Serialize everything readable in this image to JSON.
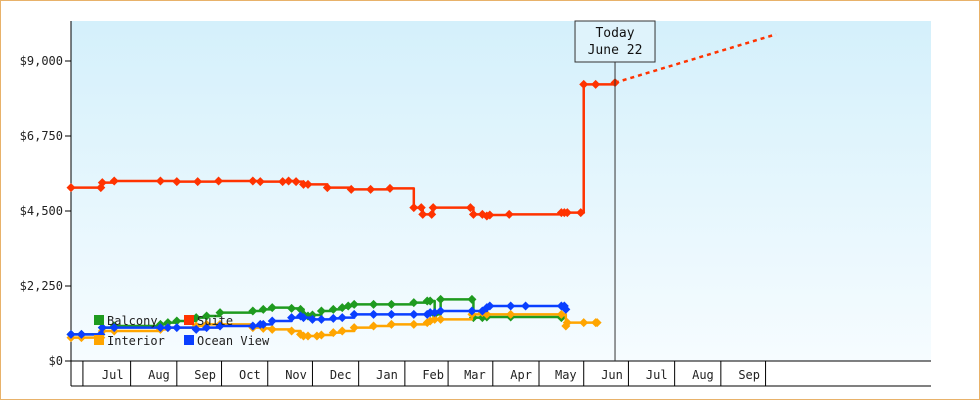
{
  "chart_data": {
    "type": "line",
    "y_ticks": [
      {
        "value": 0,
        "label": "$0"
      },
      {
        "value": 2250,
        "label": "$2,250"
      },
      {
        "value": 4500,
        "label": "$4,500"
      },
      {
        "value": 6750,
        "label": "$6,750"
      },
      {
        "value": 9000,
        "label": "$9,000"
      }
    ],
    "ylim": [
      0,
      10200
    ],
    "x_range_days": [
      -365,
      212
    ],
    "x_axis_unit": "days relative to June 22",
    "x_tick_labels": [
      {
        "label": "Jul",
        "day": -337
      },
      {
        "label": "Aug",
        "day": -306
      },
      {
        "label": "Sep",
        "day": -275
      },
      {
        "label": "Oct",
        "day": -245
      },
      {
        "label": "Nov",
        "day": -214
      },
      {
        "label": "Dec",
        "day": -184
      },
      {
        "label": "Jan",
        "day": -153
      },
      {
        "label": "Feb",
        "day": -122
      },
      {
        "label": "Mar",
        "day": -94
      },
      {
        "label": "Apr",
        "day": -63
      },
      {
        "label": "May",
        "day": -33
      },
      {
        "label": "Jun",
        "day": -2
      },
      {
        "label": "Jul",
        "day": 28
      },
      {
        "label": "Aug",
        "day": 59
      },
      {
        "label": "Sep",
        "day": 90
      }
    ],
    "month_boundaries": [
      -357,
      -325,
      -294,
      -264,
      -233,
      -203,
      -172,
      -141,
      -112,
      -82,
      -51,
      -21,
      9,
      40,
      71,
      101
    ],
    "today": {
      "line1": "Today",
      "line2": "June 22",
      "day": 0
    },
    "grid": false,
    "legend_position": "bottom-left, inside",
    "background": {
      "top": "#d4f0fb",
      "bottom": "#f6fcff"
    },
    "series": [
      {
        "name": "Suite",
        "color": "#ff3300",
        "points": [
          [
            -365,
            5200
          ],
          [
            -345,
            5200
          ],
          [
            -344,
            5350
          ],
          [
            -336,
            5400
          ],
          [
            -305,
            5400
          ],
          [
            -294,
            5380
          ],
          [
            -280,
            5380
          ],
          [
            -266,
            5400
          ],
          [
            -243,
            5400
          ],
          [
            -238,
            5380
          ],
          [
            -223,
            5380
          ],
          [
            -219,
            5400
          ],
          [
            -214,
            5380
          ],
          [
            -209,
            5300
          ],
          [
            -206,
            5300
          ],
          [
            -193,
            5200
          ],
          [
            -177,
            5150
          ],
          [
            -164,
            5150
          ],
          [
            -151,
            5180
          ],
          [
            -135,
            4600
          ],
          [
            -130,
            4600
          ],
          [
            -129,
            4400
          ],
          [
            -123,
            4400
          ],
          [
            -122,
            4600
          ],
          [
            -97,
            4600
          ],
          [
            -95,
            4400
          ],
          [
            -89,
            4400
          ],
          [
            -86,
            4350
          ],
          [
            -84,
            4380
          ],
          [
            -71,
            4400
          ],
          [
            -36,
            4450
          ],
          [
            -34,
            4450
          ],
          [
            -32,
            4450
          ],
          [
            -23,
            4450
          ],
          [
            -21,
            8300
          ],
          [
            -13,
            8300
          ],
          [
            0,
            8350
          ]
        ],
        "forecast": [
          [
            0,
            8350
          ],
          [
            108,
            9800
          ]
        ]
      },
      {
        "name": "Balcony",
        "color": "#1f9b1f",
        "points": [
          [
            -365,
            800
          ],
          [
            -358,
            800
          ],
          [
            -345,
            800
          ],
          [
            -344,
            1000
          ],
          [
            -336,
            1050
          ],
          [
            -305,
            1100
          ],
          [
            -300,
            1150
          ],
          [
            -294,
            1200
          ],
          [
            -281,
            1300
          ],
          [
            -274,
            1350
          ],
          [
            -265,
            1450
          ],
          [
            -243,
            1500
          ],
          [
            -236,
            1550
          ],
          [
            -230,
            1600
          ],
          [
            -217,
            1580
          ],
          [
            -211,
            1550
          ],
          [
            -209,
            1400
          ],
          [
            -206,
            1350
          ],
          [
            -203,
            1380
          ],
          [
            -197,
            1500
          ],
          [
            -189,
            1550
          ],
          [
            -183,
            1600
          ],
          [
            -179,
            1650
          ],
          [
            -175,
            1700
          ],
          [
            -162,
            1700
          ],
          [
            -150,
            1700
          ],
          [
            -135,
            1750
          ],
          [
            -126,
            1800
          ],
          [
            -124,
            1800
          ],
          [
            -121,
            1400
          ],
          [
            -117,
            1850
          ],
          [
            -96,
            1850
          ],
          [
            -95,
            1300
          ],
          [
            -89,
            1300
          ],
          [
            -86,
            1320
          ],
          [
            -70,
            1320
          ],
          [
            -36,
            1300
          ]
        ]
      },
      {
        "name": "Interior",
        "color": "#ffa500",
        "points": [
          [
            -365,
            700
          ],
          [
            -358,
            700
          ],
          [
            -345,
            700
          ],
          [
            -344,
            900
          ],
          [
            -336,
            900
          ],
          [
            -305,
            950
          ],
          [
            -300,
            1000
          ],
          [
            -281,
            1050
          ],
          [
            -274,
            1100
          ],
          [
            -265,
            1100
          ],
          [
            -243,
            1000
          ],
          [
            -236,
            980
          ],
          [
            -230,
            950
          ],
          [
            -217,
            900
          ],
          [
            -211,
            800
          ],
          [
            -209,
            750
          ],
          [
            -206,
            750
          ],
          [
            -200,
            750
          ],
          [
            -197,
            780
          ],
          [
            -189,
            850
          ],
          [
            -183,
            900
          ],
          [
            -175,
            1000
          ],
          [
            -162,
            1050
          ],
          [
            -150,
            1100
          ],
          [
            -135,
            1100
          ],
          [
            -126,
            1150
          ],
          [
            -124,
            1200
          ],
          [
            -121,
            1250
          ],
          [
            -117,
            1250
          ],
          [
            -96,
            1400
          ],
          [
            -89,
            1450
          ],
          [
            -86,
            1400
          ],
          [
            -70,
            1400
          ],
          [
            -36,
            1400
          ],
          [
            -33,
            1050
          ],
          [
            -32,
            1150
          ],
          [
            -21,
            1150
          ],
          [
            -13,
            1150
          ],
          [
            -12,
            1150
          ]
        ]
      },
      {
        "name": "Ocean View",
        "color": "#0a3fff",
        "points": [
          [
            -365,
            800
          ],
          [
            -358,
            800
          ],
          [
            -345,
            800
          ],
          [
            -344,
            1000
          ],
          [
            -336,
            1000
          ],
          [
            -305,
            1000
          ],
          [
            -300,
            1000
          ],
          [
            -294,
            1000
          ],
          [
            -281,
            950
          ],
          [
            -274,
            1000
          ],
          [
            -265,
            1050
          ],
          [
            -243,
            1050
          ],
          [
            -238,
            1100
          ],
          [
            -236,
            1100
          ],
          [
            -230,
            1200
          ],
          [
            -217,
            1300
          ],
          [
            -211,
            1350
          ],
          [
            -209,
            1300
          ],
          [
            -203,
            1250
          ],
          [
            -197,
            1250
          ],
          [
            -189,
            1280
          ],
          [
            -183,
            1300
          ],
          [
            -175,
            1400
          ],
          [
            -162,
            1400
          ],
          [
            -150,
            1400
          ],
          [
            -135,
            1400
          ],
          [
            -126,
            1400
          ],
          [
            -124,
            1450
          ],
          [
            -121,
            1450
          ],
          [
            -117,
            1500
          ],
          [
            -96,
            1500
          ],
          [
            -89,
            1500
          ],
          [
            -86,
            1600
          ],
          [
            -84,
            1650
          ],
          [
            -70,
            1650
          ],
          [
            -60,
            1650
          ],
          [
            -36,
            1650
          ],
          [
            -34,
            1650
          ],
          [
            -33,
            1550
          ]
        ]
      }
    ],
    "legend_order": [
      "Balcony",
      "Suite",
      "Interior",
      "Ocean View"
    ]
  }
}
